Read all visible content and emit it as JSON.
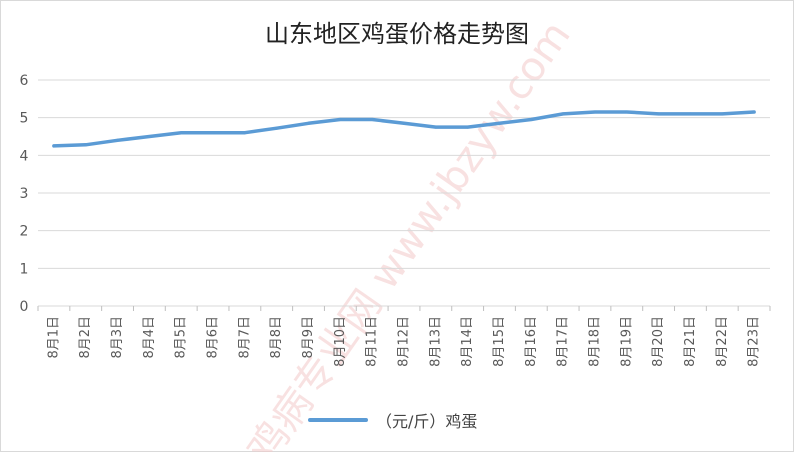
{
  "chart_data": {
    "type": "line",
    "title": "山东地区鸡蛋价格走势图",
    "categories": [
      "8月1日",
      "8月2日",
      "8月3日",
      "8月4日",
      "8月5日",
      "8月6日",
      "8月7日",
      "8月8日",
      "8月9日",
      "8月10日",
      "8月11日",
      "8月12日",
      "8月13日",
      "8月14日",
      "8月15日",
      "8月16日",
      "8月17日",
      "8月18日",
      "8月19日",
      "8月20日",
      "8月21日",
      "8月22日",
      "8月23日"
    ],
    "series": [
      {
        "name": "（元/斤）鸡蛋",
        "color": "#5b9bd5",
        "values": [
          4.25,
          4.28,
          4.4,
          4.5,
          4.6,
          4.6,
          4.6,
          4.72,
          4.85,
          4.95,
          4.95,
          4.85,
          4.75,
          4.75,
          4.85,
          4.95,
          5.1,
          5.15,
          5.15,
          5.1,
          5.1,
          5.1,
          5.15
        ]
      }
    ],
    "ylim": [
      0,
      6
    ],
    "yticks": [
      "0",
      "1",
      "2",
      "3",
      "4",
      "5",
      "6"
    ],
    "grid": true,
    "legend": "bottom",
    "watermark": "鸡病专业网 www.jbzyw.com"
  }
}
